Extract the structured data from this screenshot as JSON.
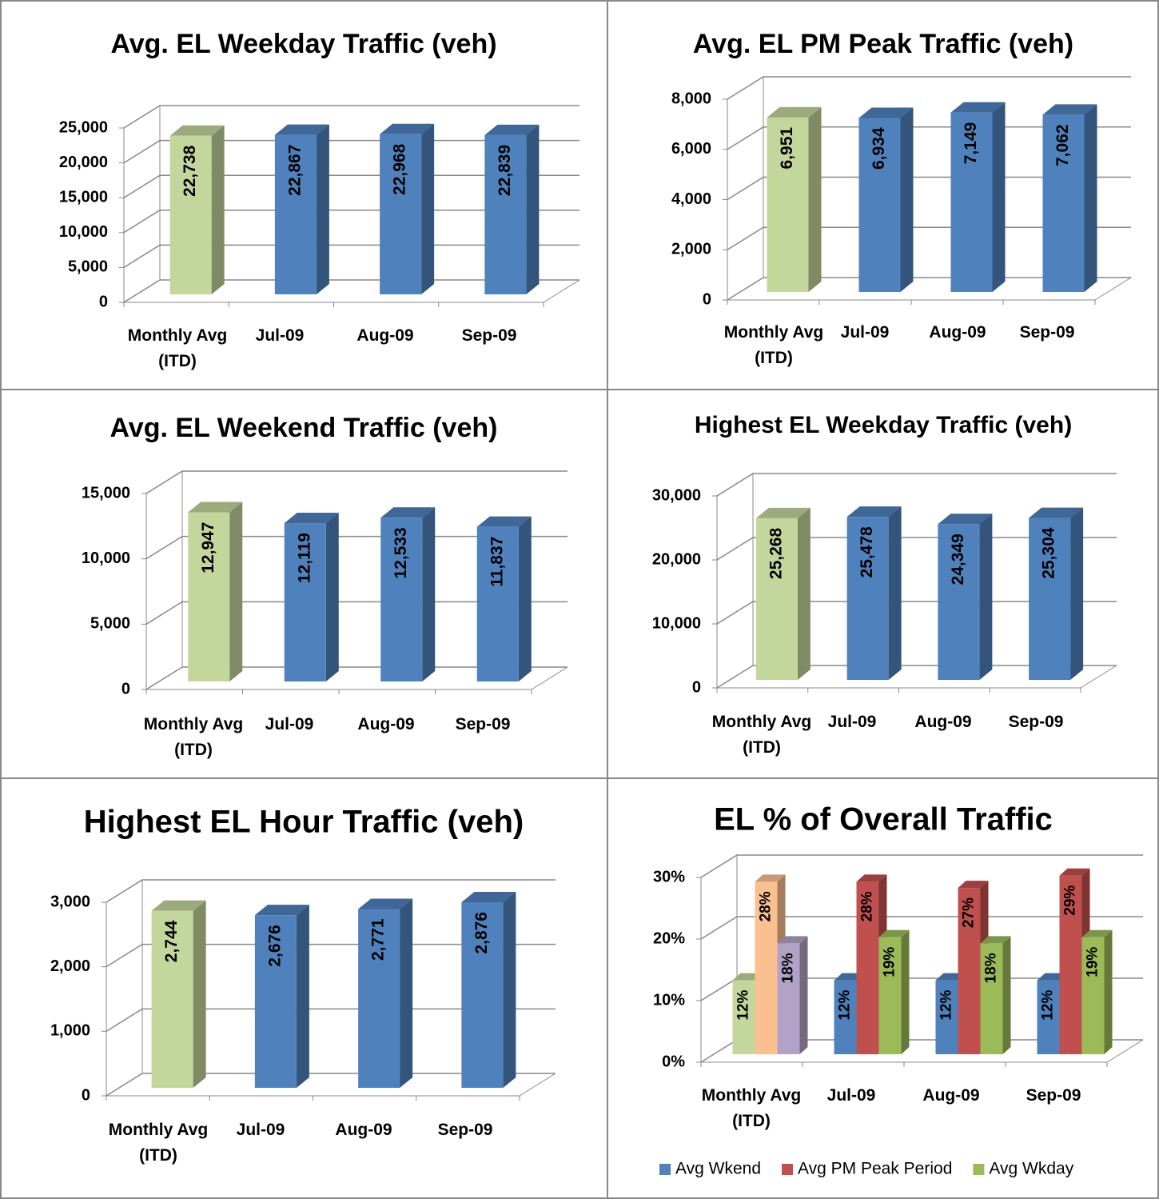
{
  "chart_data": [
    {
      "type": "bar3d",
      "title": "Avg. EL Weekday Traffic (veh)",
      "categories": [
        "Monthly Avg (ITD)",
        "Jul-09",
        "Aug-09",
        "Sep-09"
      ],
      "values": [
        22738,
        22867,
        22968,
        22839
      ],
      "value_labels": [
        "22,738",
        "22,867",
        "22,968",
        "22,839"
      ],
      "colors": [
        "#c3d69b",
        "#4f81bd",
        "#4f81bd",
        "#4f81bd"
      ],
      "ylim": [
        0,
        25000
      ],
      "yticks": [
        0,
        {
          "value": 5000,
          "label": "5,000"
        },
        {
          "value": 10000,
          "label": "10,000"
        },
        {
          "value": 15000,
          "label": "15,000"
        },
        {
          "value": 20000,
          "label": "20,000"
        },
        {
          "value": 25000,
          "label": "25,000"
        }
      ],
      "grid": true
    },
    {
      "type": "bar3d",
      "title": "Avg. EL PM Peak Traffic (veh)",
      "categories": [
        "Monthly Avg (ITD)",
        "Jul-09",
        "Aug-09",
        "Sep-09"
      ],
      "values": [
        6951,
        6934,
        7149,
        7062
      ],
      "value_labels": [
        "6,951",
        "6,934",
        "7,149",
        "7,062"
      ],
      "colors": [
        "#c3d69b",
        "#4f81bd",
        "#4f81bd",
        "#4f81bd"
      ],
      "ylim": [
        0,
        8000
      ],
      "yticks": [
        0,
        {
          "value": 2000,
          "label": "2,000"
        },
        {
          "value": 4000,
          "label": "4,000"
        },
        {
          "value": 6000,
          "label": "6,000"
        },
        {
          "value": 8000,
          "label": "8,000"
        }
      ],
      "grid": true
    },
    {
      "type": "bar3d",
      "title": "Avg. EL Weekend Traffic (veh)",
      "categories": [
        "Monthly Avg (ITD)",
        "Jul-09",
        "Aug-09",
        "Sep-09"
      ],
      "values": [
        12947,
        12119,
        12533,
        11837
      ],
      "value_labels": [
        "12,947",
        "12,119",
        "12,533",
        "11,837"
      ],
      "colors": [
        "#c3d69b",
        "#4f81bd",
        "#4f81bd",
        "#4f81bd"
      ],
      "ylim": [
        0,
        15000
      ],
      "yticks": [
        0,
        {
          "value": 5000,
          "label": "5,000"
        },
        {
          "value": 10000,
          "label": "10,000"
        },
        {
          "value": 15000,
          "label": "15,000"
        }
      ],
      "grid": true
    },
    {
      "type": "bar3d",
      "title": "Highest EL Weekday Traffic (veh)",
      "categories": [
        "Monthly Avg (ITD)",
        "Jul-09",
        "Aug-09",
        "Sep-09"
      ],
      "values": [
        25268,
        25478,
        24349,
        25304
      ],
      "value_labels": [
        "25,268",
        "25,478",
        "24,349",
        "25,304"
      ],
      "colors": [
        "#c3d69b",
        "#4f81bd",
        "#4f81bd",
        "#4f81bd"
      ],
      "ylim": [
        0,
        30000
      ],
      "yticks": [
        0,
        {
          "value": 10000,
          "label": "10,000"
        },
        {
          "value": 20000,
          "label": "20,000"
        },
        {
          "value": 30000,
          "label": "30,000"
        }
      ],
      "grid": true
    },
    {
      "type": "bar3d",
      "title": "Highest EL Hour Traffic (veh)",
      "categories": [
        "Monthly Avg (ITD)",
        "Jul-09",
        "Aug-09",
        "Sep-09"
      ],
      "values": [
        2744,
        2676,
        2771,
        2876
      ],
      "value_labels": [
        "2,744",
        "2,676",
        "2,771",
        "2,876"
      ],
      "colors": [
        "#c3d69b",
        "#4f81bd",
        "#4f81bd",
        "#4f81bd"
      ],
      "ylim": [
        0,
        3000
      ],
      "yticks": [
        0,
        {
          "value": 1000,
          "label": "1,000"
        },
        {
          "value": 2000,
          "label": "2,000"
        },
        {
          "value": 3000,
          "label": "3,000"
        }
      ],
      "grid": true
    },
    {
      "type": "grouped3d",
      "title": "EL % of Overall Traffic",
      "categories": [
        "Monthly Avg (ITD)",
        "Jul-09",
        "Aug-09",
        "Sep-09"
      ],
      "series": [
        {
          "name": "Avg Wkend",
          "color": "#4f81bd",
          "colors": [
            "#c3d69b",
            "#4f81bd",
            "#4f81bd",
            "#4f81bd"
          ],
          "values": [
            12,
            12,
            12,
            12
          ],
          "value_labels": [
            "12%",
            "12%",
            "12%",
            "12%"
          ]
        },
        {
          "name": "Avg PM Peak Period",
          "color": "#c0504d",
          "colors": [
            "#fac090",
            "#c0504d",
            "#c0504d",
            "#c0504d"
          ],
          "values": [
            28,
            28,
            27,
            29
          ],
          "value_labels": [
            "28%",
            "28%",
            "27%",
            "29%"
          ]
        },
        {
          "name": "Avg Wkday",
          "color": "#9bbb59",
          "colors": [
            "#b3a2c7",
            "#9bbb59",
            "#9bbb59",
            "#9bbb59"
          ],
          "values": [
            18,
            19,
            18,
            19
          ],
          "value_labels": [
            "18%",
            "19%",
            "18%",
            "19%"
          ]
        }
      ],
      "ylim": [
        0,
        30
      ],
      "yticks": [
        {
          "value": 0,
          "label": "0%"
        },
        {
          "value": 10,
          "label": "10%"
        },
        {
          "value": 20,
          "label": "20%"
        },
        {
          "value": 30,
          "label": "30%"
        }
      ],
      "grid": true,
      "legend": "bottom"
    }
  ]
}
